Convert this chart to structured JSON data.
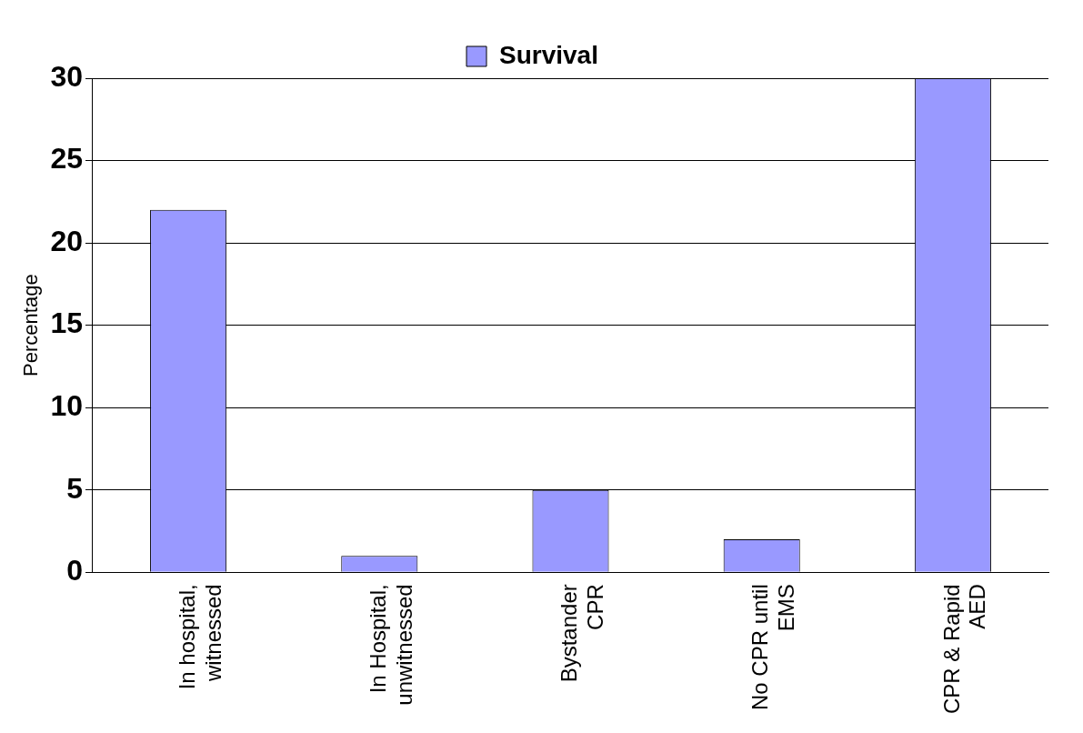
{
  "chart_data": {
    "type": "bar",
    "ylabel": "Percentage",
    "categories": [
      "In hospital, witnessed",
      "In Hospital, unwitnessed",
      "Bystander CPR",
      "No CPR until EMS",
      "CPR & Rapid AED"
    ],
    "series": [
      {
        "name": "Survival",
        "color": "#9999ff",
        "values": [
          22,
          1,
          5,
          2,
          30
        ]
      }
    ],
    "ylim": [
      0,
      30
    ],
    "yticks": [
      0,
      5,
      10,
      15,
      20,
      25,
      30
    ],
    "grid": "y",
    "legend": "top"
  }
}
